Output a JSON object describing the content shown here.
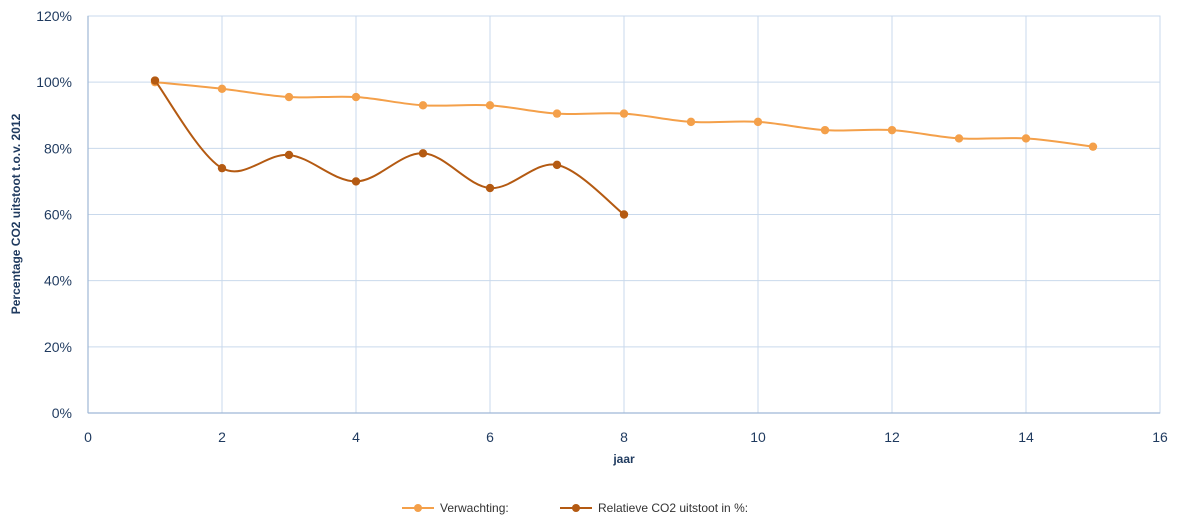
{
  "chart_data": {
    "type": "line",
    "xlabel": "jaar",
    "ylabel": "Percentage CO2 uitstoot t.o.v. 2012",
    "xlim": [
      0,
      16
    ],
    "ylim": [
      0,
      120
    ],
    "x_ticks": [
      0,
      2,
      4,
      6,
      8,
      10,
      12,
      14,
      16
    ],
    "x_tick_labels": [
      "0",
      "2",
      "4",
      "6",
      "8",
      "10",
      "12",
      "14",
      "16"
    ],
    "y_ticks": [
      0,
      20,
      40,
      60,
      80,
      100,
      120
    ],
    "y_tick_labels": [
      "0%",
      "20%",
      "40%",
      "60%",
      "80%",
      "100%",
      "120%"
    ],
    "grid": true,
    "legend_position": "bottom",
    "series": [
      {
        "name": "Verwachting:",
        "color": "#f4a04a",
        "x": [
          1,
          2,
          3,
          4,
          5,
          6,
          7,
          8,
          9,
          10,
          11,
          12,
          13,
          14,
          15
        ],
        "y": [
          100,
          98,
          95.5,
          95.5,
          93,
          93,
          90.5,
          90.5,
          88,
          88,
          85.5,
          85.5,
          83,
          83,
          80.5
        ]
      },
      {
        "name": "Relatieve CO2 uitstoot in %:",
        "color": "#b45a12",
        "x": [
          1,
          2,
          3,
          4,
          5,
          6,
          7,
          8
        ],
        "y": [
          100.5,
          74,
          78,
          70,
          78.5,
          68,
          75,
          60
        ]
      }
    ]
  }
}
